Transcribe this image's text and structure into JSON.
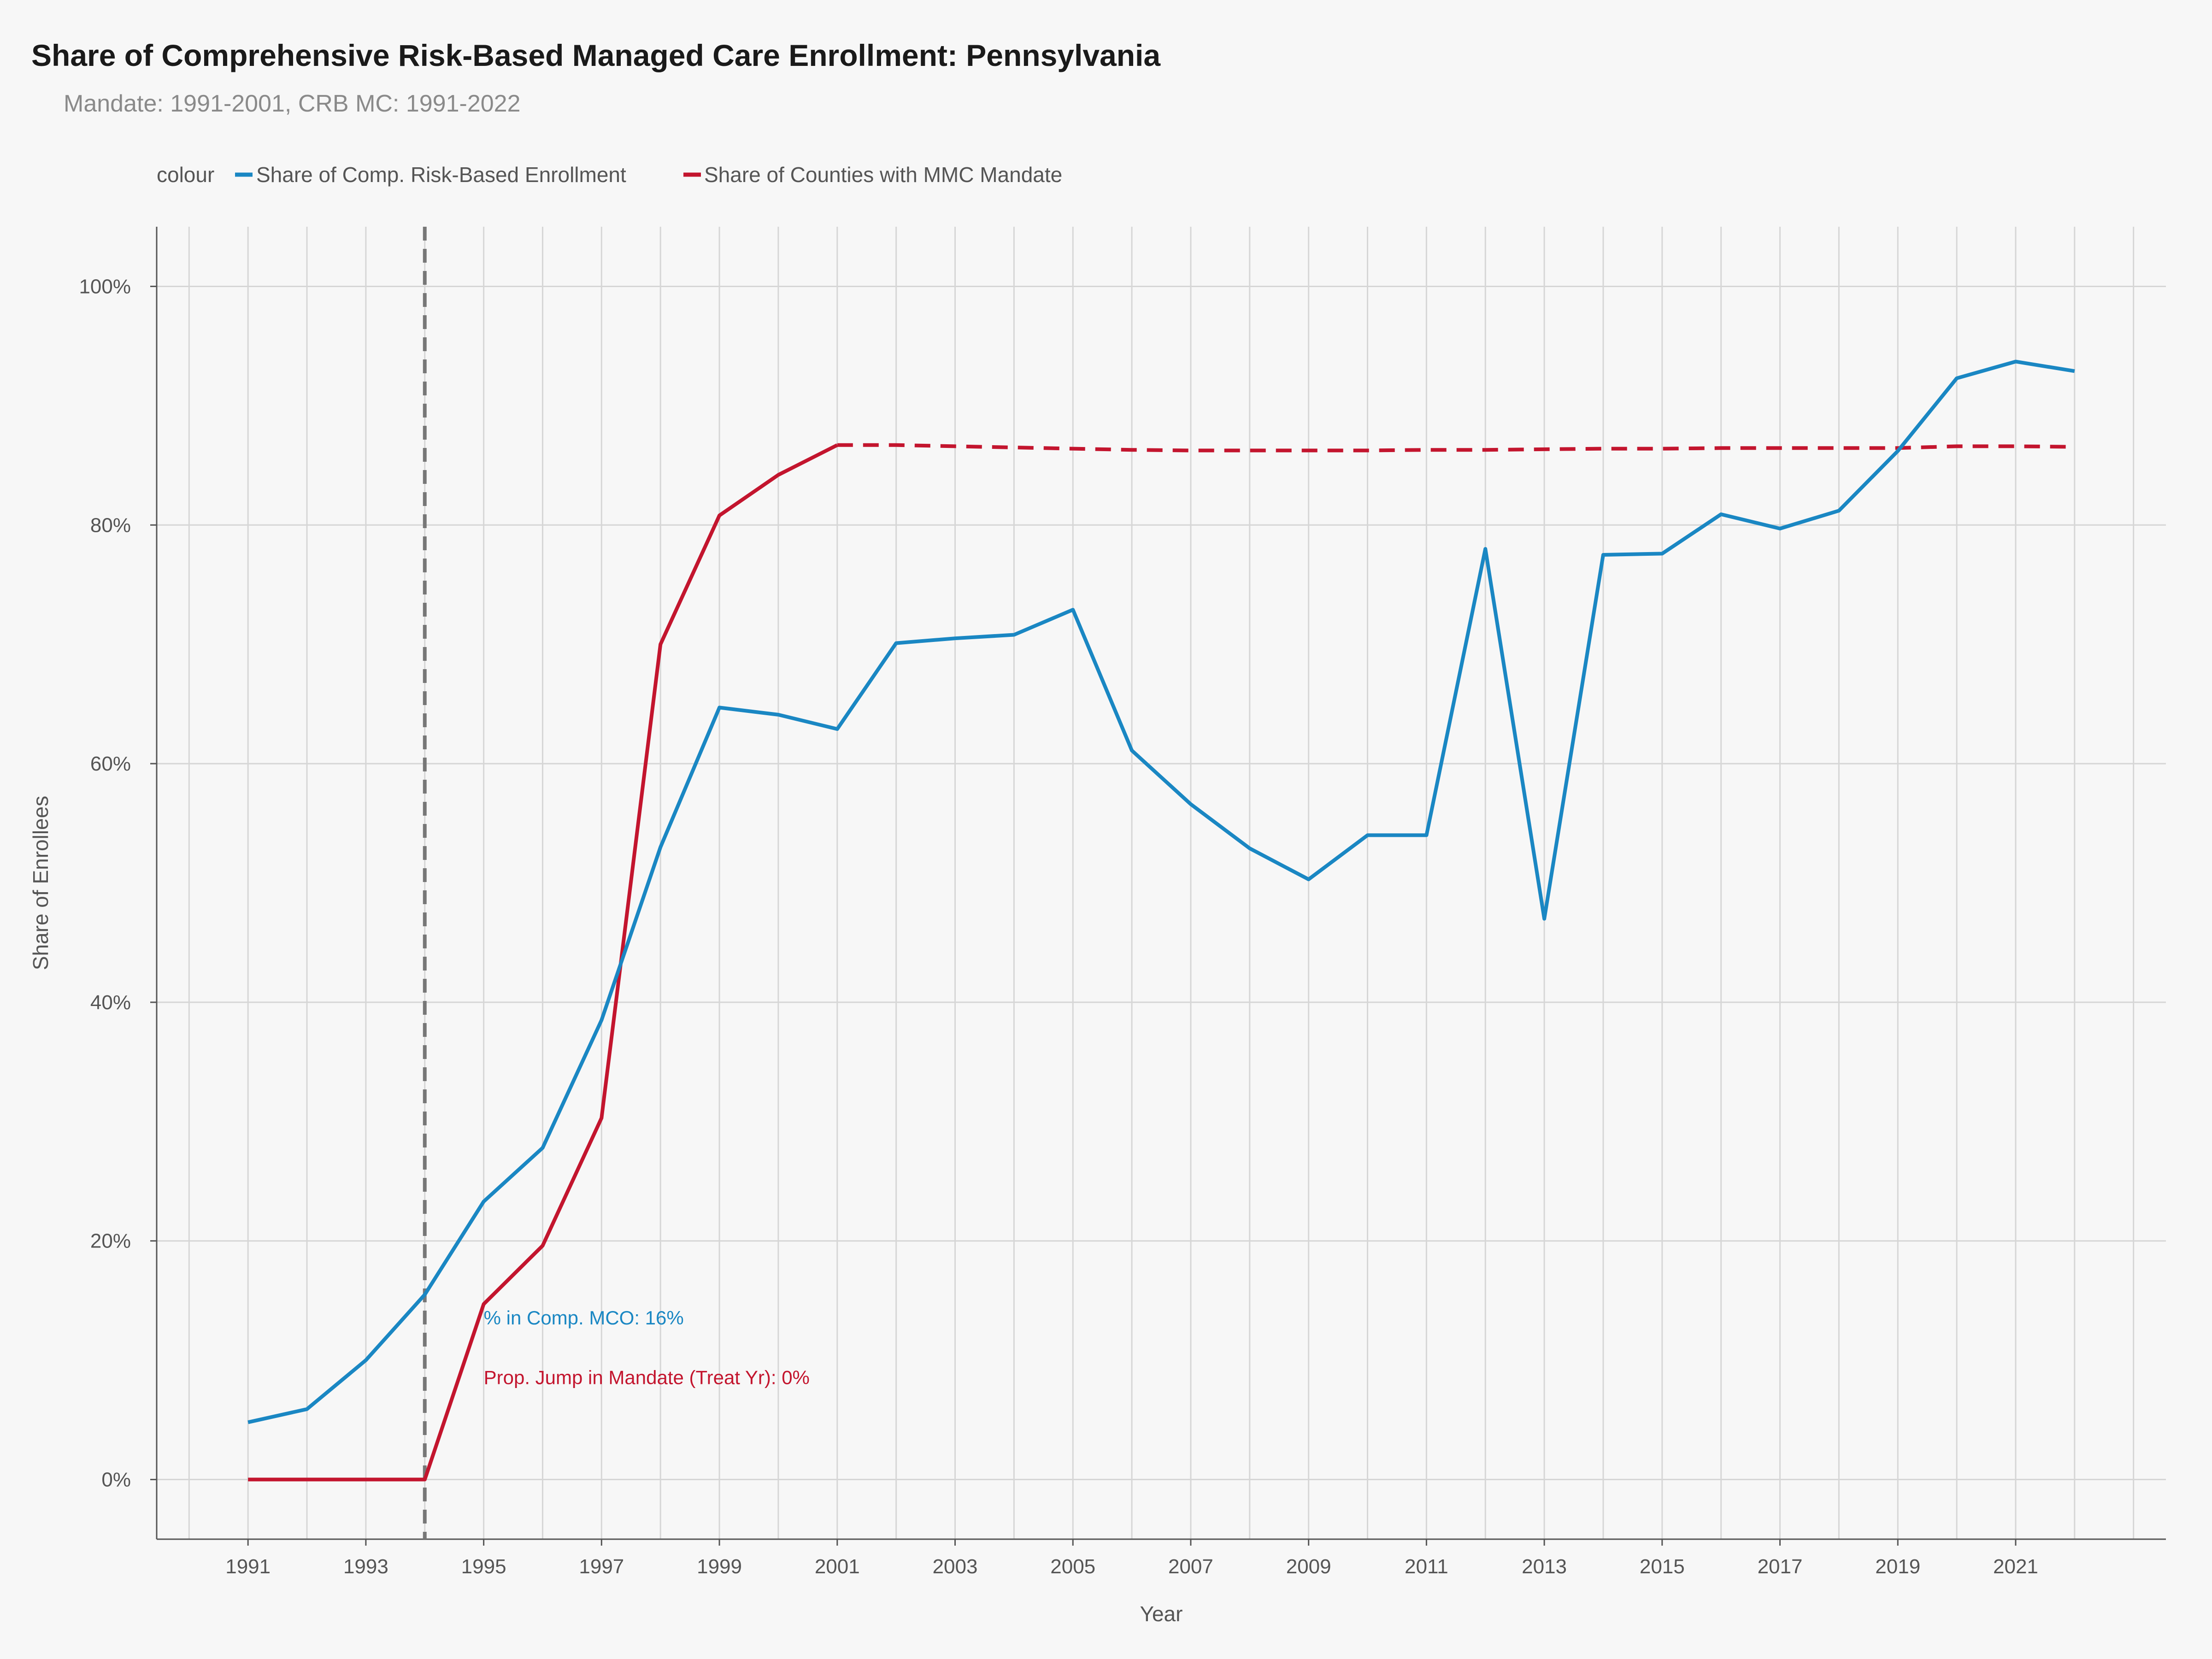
{
  "chart_data": {
    "type": "line",
    "title": "Share of Comprehensive Risk-Based Managed Care Enrollment: Pennsylvania",
    "subtitle": "Mandate: 1991-2001, CRB MC: 1991-2022",
    "xlabel": "Year",
    "ylabel": "Share of Enrollees",
    "xlim": [
      1989.45,
      2023.55
    ],
    "ylim": [
      -0.05,
      1.05
    ],
    "x_ticks": [
      1991,
      1993,
      1995,
      1997,
      1999,
      2001,
      2003,
      2005,
      2007,
      2009,
      2011,
      2013,
      2015,
      2017,
      2019,
      2021
    ],
    "x_tick_labels": [
      "1991",
      "1993",
      "1995",
      "1997",
      "1999",
      "2001",
      "2003",
      "2005",
      "2007",
      "2009",
      "2011",
      "2013",
      "2015",
      "2017",
      "2019",
      "2021"
    ],
    "y_ticks": [
      0,
      0.2,
      0.4,
      0.6,
      0.8,
      1.0
    ],
    "y_tick_labels": [
      "0%",
      "20%",
      "40%",
      "60%",
      "80%",
      "100%"
    ],
    "grid": true,
    "legend": {
      "title": "colour",
      "position": "top-left",
      "entries": [
        "Share of Comp. Risk-Based Enrollment",
        "Share of Counties with MMC Mandate"
      ]
    },
    "treatment_year": 1994,
    "series": [
      {
        "name": "Share of Comp. Risk-Based Enrollment",
        "color": "#1a87c3",
        "x": [
          1991,
          1992,
          1993,
          1994,
          1995,
          1996,
          1997,
          1998,
          1999,
          2000,
          2001,
          2002,
          2003,
          2004,
          2005,
          2006,
          2007,
          2008,
          2009,
          2010,
          2011,
          2012,
          2013,
          2014,
          2015,
          2016,
          2017,
          2018,
          2019,
          2020,
          2021,
          2022
        ],
        "values": [
          0.048,
          0.059,
          0.1,
          0.155,
          0.233,
          0.278,
          0.385,
          0.53,
          0.647,
          0.641,
          0.629,
          0.701,
          0.705,
          0.708,
          0.729,
          0.611,
          0.566,
          0.529,
          0.503,
          0.54,
          0.54,
          0.78,
          0.47,
          0.775,
          0.776,
          0.809,
          0.797,
          0.812,
          0.862,
          0.923,
          0.937,
          0.929
        ]
      },
      {
        "name": "Share of Counties with MMC Mandate",
        "color": "#c3152e",
        "x": [
          1991,
          1992,
          1993,
          1994,
          1995,
          1996,
          1997,
          1998,
          1999,
          2000,
          2001
        ],
        "values": [
          0,
          0,
          0,
          0,
          0.147,
          0.196,
          0.303,
          0.7,
          0.808,
          0.842,
          0.867
        ]
      },
      {
        "name": "",
        "style": "dashed",
        "color": "#c3152e",
        "x": [
          2001,
          2002,
          2003,
          2004,
          2005,
          2006,
          2007,
          2008,
          2009,
          2010,
          2011,
          2012,
          2013,
          2014,
          2015,
          2016,
          2017,
          2018,
          2019,
          2020,
          2021,
          2022
        ],
        "values": [
          0.867,
          0.867,
          0.866,
          0.865,
          0.864,
          0.863,
          0.8625,
          0.8625,
          0.8625,
          0.8625,
          0.863,
          0.863,
          0.8635,
          0.864,
          0.864,
          0.8645,
          0.8645,
          0.8645,
          0.8645,
          0.866,
          0.866,
          0.8655
        ]
      }
    ],
    "annotations": [
      {
        "text": "% in Comp. MCO: 16%",
        "color": "#1a87c3",
        "x": 1995,
        "y": 0.13
      },
      {
        "text": "Prop. Jump in Mandate (Treat Yr): 0%",
        "color": "#c3152e",
        "x": 1995,
        "y": 0.08
      }
    ]
  }
}
